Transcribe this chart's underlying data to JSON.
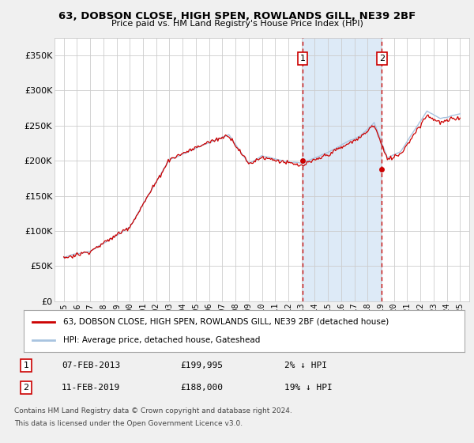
{
  "title1": "63, DOBSON CLOSE, HIGH SPEN, ROWLANDS GILL, NE39 2BF",
  "title2": "Price paid vs. HM Land Registry's House Price Index (HPI)",
  "hpi_color": "#a8c4e0",
  "price_color": "#cc0000",
  "sale1_price": 199995,
  "sale2_price": 188000,
  "sale1_year": 2013.083,
  "sale2_year": 2019.083,
  "sale1_date": "07-FEB-2013",
  "sale1_pct": "2% ↓ HPI",
  "sale2_date": "11-FEB-2019",
  "sale2_pct": "19% ↓ HPI",
  "legend_label1": "63, DOBSON CLOSE, HIGH SPEN, ROWLANDS GILL, NE39 2BF (detached house)",
  "legend_label2": "HPI: Average price, detached house, Gateshead",
  "footnote1": "Contains HM Land Registry data © Crown copyright and database right 2024.",
  "footnote2": "This data is licensed under the Open Government Licence v3.0.",
  "bg_color": "#f0f0f0",
  "plot_bg": "#ffffff",
  "shade_color": "#ddeaf7",
  "yticks": [
    0,
    50000,
    100000,
    150000,
    200000,
    250000,
    300000,
    350000
  ],
  "xlim_left": 1994.3,
  "xlim_right": 2025.7,
  "ylim_top": 375000,
  "grid_color": "#cccccc"
}
